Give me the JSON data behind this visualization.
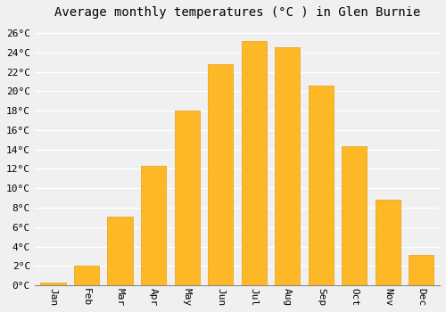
{
  "title": "Average monthly temperatures (°C ) in Glen Burnie",
  "months": [
    "Jan",
    "Feb",
    "Mar",
    "Apr",
    "May",
    "Jun",
    "Jul",
    "Aug",
    "Sep",
    "Oct",
    "Nov",
    "Dec"
  ],
  "values": [
    0.3,
    2.0,
    7.1,
    12.3,
    18.0,
    22.8,
    25.2,
    24.5,
    20.6,
    14.3,
    8.8,
    3.1
  ],
  "bar_color": "#FDB827",
  "bar_edge_color": "#E8A010",
  "ylim": [
    0,
    27
  ],
  "ytick_step": 2,
  "background_color": "#f0f0f0",
  "grid_color": "#ffffff",
  "title_fontsize": 10,
  "tick_fontsize": 8,
  "font_family": "monospace"
}
